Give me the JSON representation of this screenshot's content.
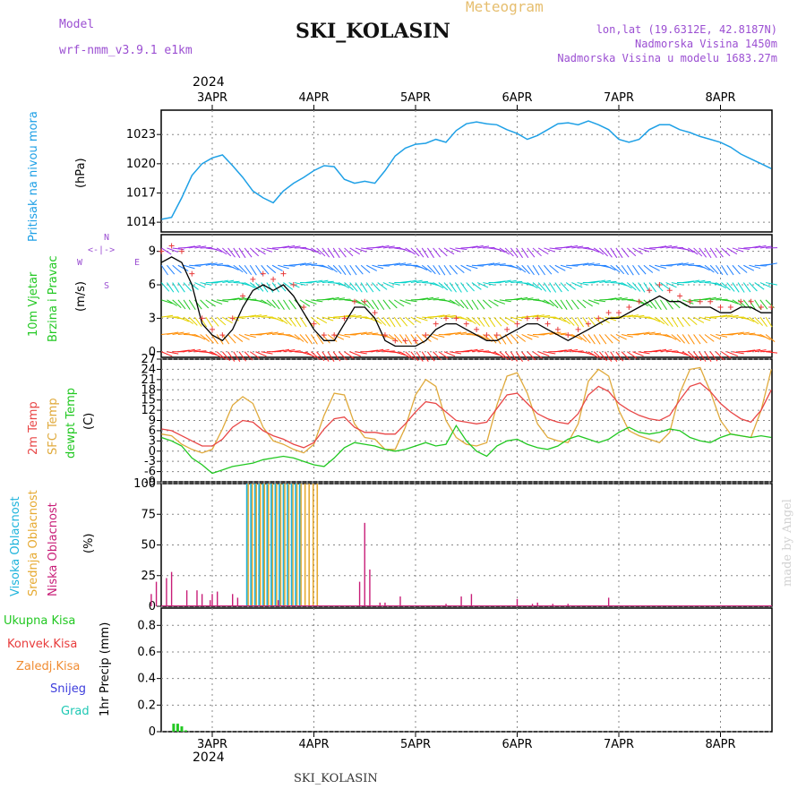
{
  "header": {
    "model_label": "Model",
    "model_name": "wrf-nmm_v3.9.1 e1km",
    "title": "SKI_KOLASIN",
    "meteogram_label": "Meteogram",
    "lonlat": "lon,lat (19.6312E, 42.8187N)",
    "altitude": "Nadmorska Visina 1450m",
    "model_altitude": "Nadmorska Visina u modelu 1683.27m",
    "footer_title": "SKI_KOLASIN",
    "credit": "made by Angel",
    "year": "2024"
  },
  "x_ticks": [
    "3APR",
    "4APR",
    "5APR",
    "6APR",
    "7APR",
    "8APR"
  ],
  "panel_labels": {
    "pressure": [
      "Pritisak na nivou mora",
      "(hPa)"
    ],
    "wind": [
      "10m Vjetar",
      "Brzina i Pravac",
      "(m/s)"
    ],
    "compass": [
      "N",
      "S",
      "W",
      "E"
    ],
    "temp": [
      "2m Temp",
      "SFC Temp",
      "dewpt Temp",
      "(C)"
    ],
    "cloud": [
      "Visoka Oblacnost",
      "Srednja Oblacnost",
      "Niska Oblacnost",
      "(%)"
    ],
    "precip_unit": "1hr Precip (mm)",
    "precip_legend": [
      "Ukupna Kisa",
      "Konvek.Kisa",
      "Zaledj.Kisa",
      "Snijeg",
      "Grad"
    ]
  },
  "colors": {
    "pressure": "#1ea0e6",
    "wind_speed": "#000000",
    "wind_gust": "#e83c3c",
    "t2m": "#e84646",
    "tsfc": "#e0aa3c",
    "dewpt": "#22c822",
    "cloud_high": "#1eb4dc",
    "cloud_mid": "#e6aa32",
    "cloud_low": "#c81e78",
    "rain": "#22c822",
    "conv": "#e83c3c",
    "frz": "#f08c32",
    "snow": "#3c3cdc",
    "hail": "#1ec8b4"
  },
  "chart_data": [
    {
      "type": "line",
      "title": "",
      "ylabel": "Pritisak na nivou mora (hPa)",
      "x_unit": "days since 2 APR 2024 00UTC",
      "yticks": [
        1014,
        1017,
        1020,
        1023
      ],
      "ylim": [
        1013,
        1025.5
      ],
      "x": [
        0.5,
        0.6,
        0.7,
        0.8,
        0.9,
        1.0,
        1.1,
        1.2,
        1.3,
        1.4,
        1.5,
        1.6,
        1.7,
        1.8,
        1.9,
        2.0,
        2.1,
        2.2,
        2.3,
        2.4,
        2.5,
        2.6,
        2.7,
        2.8,
        2.9,
        3.0,
        3.1,
        3.2,
        3.3,
        3.4,
        3.5,
        3.6,
        3.7,
        3.8,
        3.9,
        4.0,
        4.1,
        4.2,
        4.3,
        4.4,
        4.5,
        4.6,
        4.7,
        4.8,
        4.9,
        5.0,
        5.1,
        5.2,
        5.3,
        5.4,
        5.5,
        5.6,
        5.7,
        5.8,
        5.9,
        6.0,
        6.1,
        6.2,
        6.3,
        6.4,
        6.5
      ],
      "series": [
        {
          "name": "pressure",
          "values": [
            1014.3,
            1014.5,
            1016.5,
            1018.8,
            1020.0,
            1020.6,
            1020.9,
            1019.8,
            1018.6,
            1017.2,
            1016.5,
            1016.0,
            1017.2,
            1018.0,
            1018.6,
            1019.3,
            1019.8,
            1019.7,
            1018.4,
            1018.0,
            1018.2,
            1018.0,
            1019.3,
            1020.8,
            1021.6,
            1022.0,
            1022.1,
            1022.5,
            1022.2,
            1023.4,
            1024.1,
            1024.3,
            1024.1,
            1024.0,
            1023.5,
            1023.1,
            1022.5,
            1022.9,
            1023.5,
            1024.1,
            1024.2,
            1024.0,
            1024.4,
            1024.0,
            1023.5,
            1022.5,
            1022.2,
            1022.5,
            1023.5,
            1024.0,
            1024.0,
            1023.5,
            1023.2,
            1022.8,
            1022.5,
            1022.2,
            1021.7,
            1021.0,
            1020.5,
            1020.0,
            1019.5
          ]
        }
      ]
    },
    {
      "type": "line",
      "title": "",
      "ylabel": "10m Vjetar Brzina i Pravac (m/s)",
      "yticks": [
        0,
        3,
        6,
        9
      ],
      "ylim": [
        -0.5,
        10.5
      ],
      "x": [
        0.5,
        0.6,
        0.7,
        0.8,
        0.9,
        1.0,
        1.1,
        1.2,
        1.3,
        1.4,
        1.5,
        1.6,
        1.7,
        1.8,
        1.9,
        2.0,
        2.1,
        2.2,
        2.3,
        2.4,
        2.5,
        2.6,
        2.7,
        2.8,
        2.9,
        3.0,
        3.1,
        3.2,
        3.3,
        3.4,
        3.5,
        3.6,
        3.7,
        3.8,
        3.9,
        4.0,
        4.1,
        4.2,
        4.3,
        4.4,
        4.5,
        4.6,
        4.7,
        4.8,
        4.9,
        5.0,
        5.1,
        5.2,
        5.3,
        5.4,
        5.5,
        5.6,
        5.7,
        5.8,
        5.9,
        6.0,
        6.1,
        6.2,
        6.3,
        6.4,
        6.5
      ],
      "series": [
        {
          "name": "speed",
          "values": [
            8.0,
            8.5,
            8.0,
            6.0,
            2.5,
            1.5,
            1.0,
            2.0,
            4.0,
            5.5,
            6.0,
            5.5,
            6.0,
            5.0,
            3.5,
            2.0,
            1.0,
            1.0,
            2.5,
            4.0,
            4.0,
            3.0,
            1.0,
            0.5,
            0.5,
            0.5,
            1.0,
            2.0,
            2.5,
            2.5,
            2.0,
            1.5,
            1.0,
            1.0,
            1.5,
            2.0,
            2.5,
            2.5,
            2.0,
            1.5,
            1.0,
            1.5,
            2.0,
            2.5,
            3.0,
            3.0,
            3.5,
            4.0,
            4.5,
            5.0,
            4.5,
            4.5,
            4.0,
            4.0,
            4.0,
            3.5,
            3.5,
            4.0,
            4.0,
            3.5,
            3.5
          ]
        },
        {
          "name": "gust",
          "values": [
            9.0,
            9.5,
            9.0,
            7.0,
            3.0,
            2.0,
            1.5,
            3.0,
            5.0,
            6.5,
            7.0,
            6.5,
            7.0,
            6.0,
            4.0,
            2.5,
            1.5,
            1.5,
            3.0,
            4.5,
            4.5,
            3.5,
            1.5,
            1.0,
            1.0,
            1.0,
            1.5,
            2.5,
            3.0,
            3.0,
            2.5,
            2.0,
            1.5,
            1.5,
            2.0,
            2.5,
            3.0,
            3.0,
            2.5,
            2.0,
            1.5,
            2.0,
            2.5,
            3.0,
            3.5,
            3.5,
            4.0,
            4.5,
            5.5,
            6.0,
            5.5,
            5.0,
            4.5,
            4.5,
            4.5,
            4.0,
            4.0,
            4.5,
            4.5,
            4.0,
            4.0
          ]
        }
      ]
    },
    {
      "type": "line",
      "title": "",
      "ylabel": "Temp (C)",
      "yticks": [
        -9,
        -6,
        -3,
        0,
        3,
        6,
        9,
        12,
        15,
        18,
        21,
        24,
        27
      ],
      "ylim": [
        -9,
        27
      ],
      "x": [
        0.5,
        0.6,
        0.7,
        0.8,
        0.9,
        1.0,
        1.1,
        1.2,
        1.3,
        1.4,
        1.5,
        1.6,
        1.7,
        1.8,
        1.9,
        2.0,
        2.1,
        2.2,
        2.3,
        2.4,
        2.5,
        2.6,
        2.7,
        2.8,
        2.9,
        3.0,
        3.1,
        3.2,
        3.3,
        3.4,
        3.5,
        3.6,
        3.7,
        3.8,
        3.9,
        4.0,
        4.1,
        4.2,
        4.3,
        4.4,
        4.5,
        4.6,
        4.7,
        4.8,
        4.9,
        5.0,
        5.1,
        5.2,
        5.3,
        5.4,
        5.5,
        5.6,
        5.7,
        5.8,
        5.9,
        6.0,
        6.1,
        6.2,
        6.3,
        6.4,
        6.5
      ],
      "series": [
        {
          "name": "t2m",
          "values": [
            6.5,
            6.0,
            4.5,
            3.0,
            1.5,
            1.5,
            3.5,
            7.0,
            9.0,
            8.5,
            6.0,
            4.5,
            3.5,
            2.0,
            1.0,
            2.5,
            6.5,
            9.5,
            10.0,
            7.0,
            5.5,
            5.5,
            5.0,
            5.0,
            8.0,
            11.5,
            14.5,
            14.0,
            11.5,
            9.0,
            8.5,
            8.0,
            8.5,
            12.5,
            16.5,
            17.0,
            14.0,
            11.0,
            9.5,
            8.5,
            8.0,
            11.0,
            16.5,
            19.0,
            17.5,
            14.0,
            12.0,
            10.5,
            9.5,
            9.0,
            10.5,
            15.0,
            19.0,
            20.0,
            17.5,
            14.0,
            11.5,
            9.5,
            8.5,
            12.0,
            18.0
          ]
        },
        {
          "name": "tsfc",
          "values": [
            5.0,
            4.5,
            2.0,
            0.5,
            -0.5,
            0.5,
            6.5,
            13.5,
            16.0,
            14.0,
            7.0,
            3.0,
            2.0,
            0.5,
            -0.5,
            2.0,
            10.5,
            17.0,
            16.5,
            8.0,
            4.0,
            3.5,
            0.5,
            0.5,
            7.0,
            16.5,
            21.0,
            19.0,
            9.0,
            4.0,
            2.0,
            1.5,
            2.5,
            13.5,
            22.0,
            23.0,
            17.0,
            8.0,
            4.0,
            3.0,
            2.5,
            8.0,
            20.5,
            24.0,
            22.0,
            12.0,
            6.0,
            4.5,
            3.5,
            2.5,
            5.5,
            17.0,
            24.0,
            24.5,
            17.5,
            9.0,
            5.0,
            4.5,
            4.0,
            12.0,
            24.0
          ]
        },
        {
          "name": "dewpt",
          "values": [
            4.0,
            3.0,
            1.5,
            -2.0,
            -4.0,
            -6.5,
            -5.5,
            -4.5,
            -4.0,
            -3.5,
            -2.5,
            -2.0,
            -1.5,
            -2.0,
            -3.0,
            -4.0,
            -4.5,
            -2.0,
            1.0,
            2.5,
            2.0,
            1.5,
            0.5,
            0.0,
            0.5,
            1.5,
            2.5,
            1.5,
            2.0,
            7.5,
            3.0,
            0.0,
            -1.5,
            1.5,
            3.0,
            3.5,
            2.0,
            1.0,
            0.5,
            1.5,
            3.5,
            4.5,
            3.5,
            2.5,
            3.5,
            5.5,
            7.0,
            5.5,
            5.0,
            5.5,
            6.5,
            6.0,
            4.0,
            3.0,
            2.5,
            4.0,
            5.0,
            4.5,
            4.0,
            4.5,
            4.0
          ]
        }
      ]
    },
    {
      "type": "bar",
      "title": "",
      "ylabel": "Oblacnost (%)",
      "yticks": [
        0,
        25,
        50,
        75,
        100
      ],
      "ylim": [
        0,
        100
      ],
      "x_low": [
        0.4,
        0.45,
        0.55,
        0.6,
        0.75,
        0.85,
        0.9,
        0.98,
        1.0,
        1.05,
        1.2,
        1.25,
        1.65,
        2.45,
        2.5,
        2.55,
        2.65,
        2.7,
        2.85,
        3.3,
        3.45,
        3.55,
        4.0,
        4.15,
        4.2,
        4.35,
        4.5,
        4.9
      ],
      "low": [
        10,
        20,
        23,
        28,
        13,
        13,
        10,
        5,
        10,
        12,
        10,
        7,
        5,
        20,
        68,
        30,
        3,
        3,
        8,
        2,
        8,
        10,
        6,
        2,
        3,
        2,
        2,
        7
      ],
      "x_hm": [
        1.34,
        1.38,
        1.42,
        1.46,
        1.5,
        1.54,
        1.58,
        1.62,
        1.66,
        1.7,
        1.74,
        1.78,
        1.82,
        1.86,
        1.9,
        1.94,
        1.98,
        2.02
      ],
      "high": [
        100,
        100,
        100,
        100,
        100,
        100,
        100,
        100,
        100,
        100,
        100,
        100,
        100,
        100,
        0,
        0,
        0,
        0
      ],
      "mid": [
        100,
        100,
        100,
        100,
        100,
        100,
        100,
        100,
        100,
        100,
        100,
        100,
        100,
        100,
        100,
        100,
        100,
        100
      ]
    },
    {
      "type": "bar",
      "title": "",
      "ylabel": "1hr Precip (mm)",
      "yticks": [
        0,
        0.2,
        0.4,
        0.6,
        0.8
      ],
      "ylim": [
        0,
        0.93
      ],
      "x": [
        0.62,
        0.66,
        0.7,
        0.74
      ],
      "values": [
        0.06,
        0.06,
        0.04,
        0.01
      ]
    }
  ]
}
